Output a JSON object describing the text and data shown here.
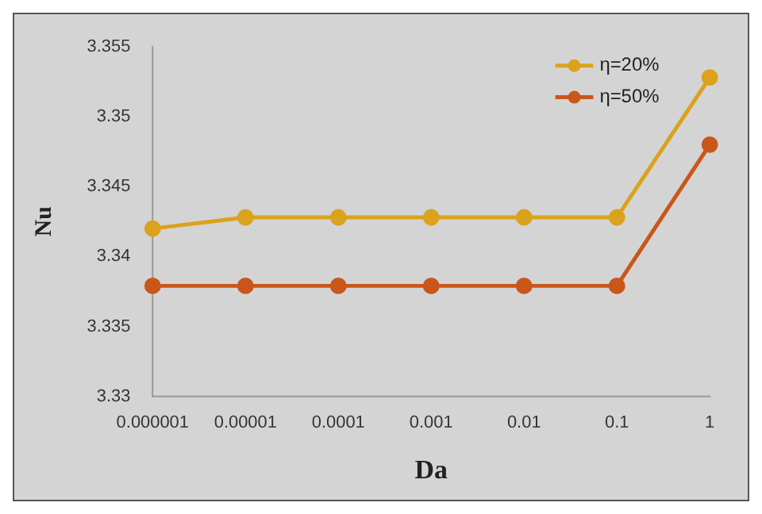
{
  "chart_data": {
    "type": "line",
    "xlabel": "Da",
    "ylabel": "Nu",
    "categories": [
      "0.000001",
      "0.00001",
      "0.0001",
      "0.001",
      "0.01",
      "0.1",
      "1"
    ],
    "series": [
      {
        "name": "η=20%",
        "color": "#dba21c",
        "values": [
          3.342,
          3.3428,
          3.3428,
          3.3428,
          3.3428,
          3.3428,
          3.3528
        ]
      },
      {
        "name": "η=50%",
        "color": "#c9561a",
        "values": [
          3.3379,
          3.3379,
          3.3379,
          3.3379,
          3.3379,
          3.3379,
          3.348
        ]
      }
    ],
    "ylim": [
      3.33,
      3.355
    ],
    "yticks": [
      3.33,
      3.335,
      3.34,
      3.345,
      3.35,
      3.355
    ],
    "grid": false,
    "legend": "top right",
    "marker": "circle",
    "line_style": "solid"
  }
}
